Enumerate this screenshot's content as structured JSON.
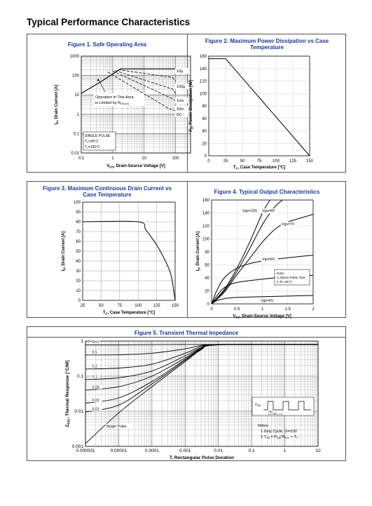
{
  "page": {
    "title": "Typical Performance Characteristics"
  },
  "figures": {
    "fig1": {
      "title": "Figure 1. Safe Operating Area"
    },
    "fig2": {
      "title_line1": "Figure 2. Maximum Power Dissipation vs Case",
      "title_line2": "Temperature"
    },
    "fig3": {
      "title_line1": "Figure 3. Maximum Continuous Drain Current vs",
      "title_line2": "Case Temperature"
    },
    "fig4": {
      "title": "Figure 4. Typical Output Characteristics"
    },
    "fig5": {
      "title": "Figure 5. Transient Thermal Impedance"
    }
  },
  "chart_data": [
    {
      "id": "fig1",
      "type": "line",
      "title": "Figure 1. Safe Operating Area",
      "xlabel": "V_DS, Drain-Source Voltage [V]",
      "ylabel": "I_D, Drain Current [A]",
      "xscale": "log",
      "yscale": "log",
      "xlim": [
        0.1,
        300
      ],
      "ylim": [
        0.01,
        1000
      ],
      "xticks": [
        "0.1",
        "1",
        "10",
        "100"
      ],
      "yticks": [
        "1000",
        "100",
        "10",
        "1",
        "0.1",
        "0.01"
      ],
      "grid": true,
      "series": [
        {
          "name": "10µ",
          "x": [
            0.1,
            0.35,
            1.8,
            100,
            150
          ],
          "y": [
            12,
            40,
            220,
            220,
            120
          ]
        },
        {
          "name": "100µ",
          "x": [
            1.5,
            80,
            100
          ],
          "y": [
            200,
            80,
            50
          ]
        },
        {
          "name": "1ms",
          "x": [
            1.2,
            80,
            100
          ],
          "y": [
            180,
            20,
            12
          ]
        },
        {
          "name": "10m",
          "x": [
            1.0,
            70,
            100
          ],
          "y": [
            170,
            7,
            5
          ]
        },
        {
          "name": "DC",
          "x": [
            0.7,
            60,
            100
          ],
          "y": [
            150,
            2,
            1.5
          ]
        }
      ],
      "annotations": [
        {
          "text_line1": "Operation in This Area",
          "text_line2": "is Limited by R",
          "subscript": "DS(on)"
        },
        {
          "text_line1": "SINGLE PULSE",
          "text_line2": "T",
          "subscript2": "C",
          "text_line2b": "=25°C",
          "text_line3": "T",
          "subscript3": "J",
          "text_line3b": "=150°C"
        }
      ]
    },
    {
      "id": "fig2",
      "type": "line",
      "title": "Figure 2. Maximum Power Dissipation vs Case Temperature",
      "xlabel": "T_C, Case Temperature [°C]",
      "ylabel": "P_D, Power Dissipation [W]",
      "xlim": [
        0,
        150
      ],
      "ylim": [
        0,
        160
      ],
      "xticks": [
        "0",
        "25",
        "50",
        "75",
        "100",
        "125",
        "150"
      ],
      "yticks": [
        "0",
        "20",
        "40",
        "60",
        "80",
        "100",
        "120",
        "140",
        "160"
      ],
      "grid": true,
      "series": [
        {
          "x": [
            0,
            25,
            150
          ],
          "y": [
            156,
            156,
            0
          ]
        }
      ]
    },
    {
      "id": "fig3",
      "type": "line",
      "title": "Figure 3. Maximum Continuous Drain Current vs Case Temperature",
      "xlabel": "T_C, Case Temperature [°C]",
      "ylabel": "I_D, Drain Current [A]",
      "xlim": [
        25,
        150
      ],
      "ylim": [
        0,
        100
      ],
      "xticks": [
        "25",
        "50",
        "75",
        "100",
        "125",
        "150"
      ],
      "yticks": [
        "0",
        "10",
        "20",
        "30",
        "40",
        "50",
        "60",
        "70",
        "80",
        "90",
        "100"
      ],
      "grid": true,
      "series": [
        {
          "x": [
            25,
            100,
            110,
            120,
            130,
            140,
            145,
            150
          ],
          "y": [
            80,
            80,
            72,
            62,
            50,
            35,
            24,
            0
          ]
        }
      ]
    },
    {
      "id": "fig4",
      "type": "line",
      "title": "Figure 4. Typical Output Characteristics",
      "xlabel": "V_DS, Drain-Source Voltage [V]",
      "ylabel": "I_D, Drain Current [A]",
      "xlim": [
        0,
        2
      ],
      "ylim": [
        0,
        160
      ],
      "xticks": [
        "0",
        "0.5",
        "1",
        "1.5",
        "2"
      ],
      "yticks": [
        "0",
        "20",
        "40",
        "60",
        "80",
        "100",
        "120",
        "140",
        "160"
      ],
      "grid": true,
      "series": [
        {
          "name": "Vgs=10V",
          "x": [
            0,
            0.25,
            0.5,
            0.75,
            1.0,
            1.15
          ],
          "y": [
            0,
            22,
            55,
            95,
            140,
            160
          ]
        },
        {
          "name": "Vgs=8V",
          "x": [
            0,
            0.25,
            0.5,
            0.75,
            1.0,
            1.25,
            1.4
          ],
          "y": [
            0,
            20,
            50,
            85,
            122,
            150,
            160
          ]
        },
        {
          "name": "Vgs=7V",
          "x": [
            0,
            0.25,
            0.5,
            0.75,
            1.0,
            1.25,
            1.5,
            2.0
          ],
          "y": [
            0,
            18,
            45,
            70,
            95,
            115,
            126,
            138
          ]
        },
        {
          "name": "Vgs=6V",
          "x": [
            0,
            0.1,
            0.25,
            0.5,
            0.75,
            1.0,
            1.5,
            2.0
          ],
          "y": [
            0,
            20,
            40,
            55,
            62,
            66,
            71,
            75
          ]
        },
        {
          "name": "",
          "x": [
            0,
            0.1,
            0.25,
            0.5,
            1.0,
            1.5,
            2.0
          ],
          "y": [
            0,
            12,
            25,
            33,
            38,
            42,
            44
          ]
        },
        {
          "name": "Vgs=5V",
          "x": [
            0,
            0.1,
            0.25,
            0.5,
            1.0,
            1.5,
            2.0
          ],
          "y": [
            0,
            5,
            8,
            10,
            11,
            12,
            13
          ]
        }
      ],
      "note": {
        "title": "Note",
        "line1": "1.250us Pulse Test",
        "line2": "2.Tc=25°C"
      }
    },
    {
      "id": "fig5",
      "type": "line",
      "title": "Figure 5. Transient Thermal Impedance",
      "xlabel": "T, Rectangular Pulse Duration",
      "ylabel": "Z_θJC, Thermal Response [°C/W]",
      "xscale": "log",
      "yscale": "log",
      "xlim": [
        1e-06,
        10
      ],
      "ylim": [
        0.001,
        1
      ],
      "xticks": [
        "0.000001",
        "0.00001",
        "0.0001",
        "0.001",
        "0.01",
        "0.1",
        "1",
        "10"
      ],
      "yticks": [
        "1",
        "0.1",
        "0.01",
        "0.001"
      ],
      "grid": true,
      "series": [
        {
          "name": "D=1",
          "x": [
            1e-06,
            1e-05,
            0.0001,
            0.001,
            0.01,
            10
          ],
          "y": [
            0.78,
            0.78,
            0.79,
            0.8,
            0.8,
            0.8
          ]
        },
        {
          "name": "0.5",
          "x": [
            1e-06,
            1e-05,
            0.0001,
            0.001,
            0.003,
            0.01,
            10
          ],
          "y": [
            0.4,
            0.41,
            0.45,
            0.6,
            0.75,
            0.8,
            0.8
          ]
        },
        {
          "name": "0.2",
          "x": [
            1e-06,
            1e-05,
            0.0001,
            0.001,
            0.003,
            0.01,
            10
          ],
          "y": [
            0.16,
            0.17,
            0.22,
            0.45,
            0.7,
            0.8,
            0.8
          ]
        },
        {
          "name": "0.1",
          "x": [
            1e-06,
            1e-05,
            0.0001,
            0.001,
            0.003,
            0.01,
            10
          ],
          "y": [
            0.08,
            0.09,
            0.14,
            0.38,
            0.65,
            0.8,
            0.8
          ]
        },
        {
          "name": "0.05",
          "x": [
            1e-06,
            1e-05,
            0.0001,
            0.001,
            0.003,
            0.01,
            10
          ],
          "y": [
            0.04,
            0.05,
            0.1,
            0.33,
            0.62,
            0.79,
            0.8
          ]
        },
        {
          "name": "0.02",
          "x": [
            1e-06,
            1e-05,
            0.0001,
            0.001,
            0.003,
            0.01,
            10
          ],
          "y": [
            0.017,
            0.024,
            0.07,
            0.3,
            0.6,
            0.79,
            0.8
          ]
        },
        {
          "name": "0.01",
          "x": [
            1e-06,
            1e-05,
            0.0001,
            0.001,
            0.003,
            0.01,
            10
          ],
          "y": [
            0.0095,
            0.015,
            0.06,
            0.28,
            0.58,
            0.79,
            0.8
          ]
        },
        {
          "name": "Single Pulse",
          "x": [
            1e-06,
            1e-05,
            0.0001,
            0.001,
            0.003,
            0.01,
            10
          ],
          "y": [
            0.0012,
            0.009,
            0.05,
            0.26,
            0.56,
            0.78,
            0.8
          ]
        }
      ],
      "inset": {
        "label_p": "P",
        "label_p_sub": "DM",
        "label_t1": "t1",
        "label_t2": "t2"
      },
      "notes": {
        "title": "Notes:",
        "line1": "1.Duty  Cycle, D=t1/t2",
        "line2": "2.T",
        "line2_sub": "JM",
        "line2_b": " = P",
        "line2_sub2": "DM",
        "line2_c": "*R",
        "line2_sub3": "θJC",
        "line2_d": " + T",
        "line2_sub4": "C"
      }
    }
  ]
}
